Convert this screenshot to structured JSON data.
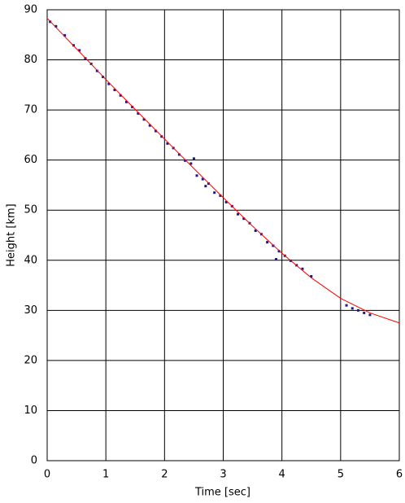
{
  "chart_data": {
    "type": "scatter",
    "x_label": "Time [sec]",
    "y_label": "Height [km]",
    "xlim": [
      0,
      6
    ],
    "ylim": [
      0,
      90
    ],
    "xticks": [
      0,
      1,
      2,
      3,
      4,
      5,
      6
    ],
    "yticks": [
      0,
      10,
      20,
      30,
      40,
      50,
      60,
      70,
      80,
      90
    ],
    "grid": true,
    "series": [
      {
        "type": "scatter",
        "color": "#1a1a8c",
        "x": [
          0.05,
          0.15,
          0.3,
          0.45,
          0.55,
          0.65,
          0.75,
          0.85,
          0.95,
          1.05,
          1.15,
          1.25,
          1.35,
          1.45,
          1.55,
          1.65,
          1.75,
          1.85,
          1.95,
          2.05,
          2.15,
          2.25,
          2.35,
          2.45,
          2.5,
          2.55,
          2.65,
          2.7,
          2.75,
          2.85,
          2.95,
          3.05,
          3.15,
          3.25,
          3.35,
          3.45,
          3.55,
          3.65,
          3.75,
          3.85,
          3.9,
          3.95,
          4.05,
          4.15,
          4.25,
          4.35,
          4.5,
          5.1,
          5.2,
          5.3,
          5.4,
          5.5
        ],
        "values": [
          87.6,
          86.7,
          84.9,
          82.9,
          81.9,
          80.3,
          79.2,
          77.8,
          76.6,
          75.2,
          74.0,
          72.9,
          71.6,
          70.6,
          69.3,
          68.1,
          66.9,
          65.8,
          64.7,
          63.3,
          62.4,
          61.1,
          59.9,
          59.3,
          60.3,
          56.9,
          56.2,
          54.8,
          55.3,
          53.5,
          52.9,
          51.6,
          50.8,
          49.2,
          48.3,
          47.4,
          45.9,
          45.2,
          43.6,
          42.9,
          40.2,
          41.8,
          40.9,
          39.9,
          39.0,
          38.3,
          36.8,
          31.0,
          30.4,
          30.0,
          29.5,
          29.1
        ]
      },
      {
        "type": "line",
        "color": "#ff0000",
        "x": [
          0,
          0.5,
          1,
          1.5,
          2,
          2.5,
          3,
          3.5,
          4,
          4.5,
          5,
          5.5,
          6
        ],
        "values": [
          88.3,
          82.2,
          76.1,
          70.1,
          64.2,
          58.3,
          52.5,
          46.8,
          41.4,
          36.5,
          32.4,
          29.5,
          27.5
        ]
      }
    ]
  }
}
